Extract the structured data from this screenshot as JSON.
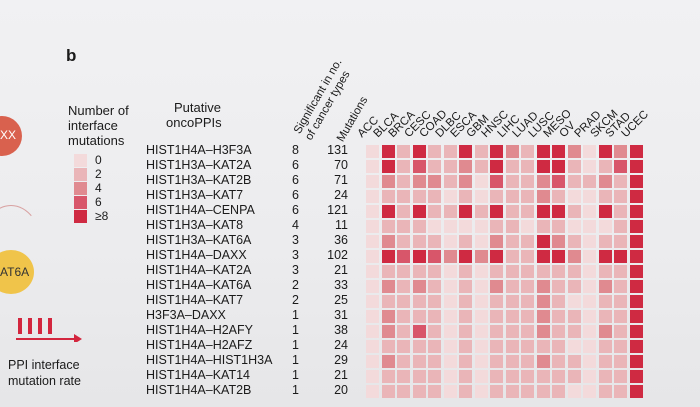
{
  "panel_label": "b",
  "left_fragments": {
    "top_text": "XX",
    "bottom_text": "AT6A"
  },
  "legend": {
    "title_lines": [
      "Number of",
      "interface",
      "mutations"
    ],
    "levels": [
      {
        "label": "0",
        "color": "#f3dadb"
      },
      {
        "label": "2",
        "color": "#eab5b8"
      },
      {
        "label": "4",
        "color": "#e08a90"
      },
      {
        "label": "6",
        "color": "#d8566a"
      },
      {
        "label": "≥8",
        "color": "#cf2a42"
      }
    ]
  },
  "ppi_arrow": {
    "label_lines": [
      "PPI interface",
      "mutation rate"
    ],
    "color": "#d3263e"
  },
  "headers": {
    "putative": [
      "Putative",
      "oncoPPIs"
    ],
    "significant": [
      "Significant in no.",
      "of cancer types"
    ],
    "mutations": "Mutations"
  },
  "cancer_types": [
    "ACC",
    "BLCA",
    "BRCA",
    "CESC",
    "COAD",
    "DLBC",
    "ESCA",
    "GBM",
    "HNSC",
    "LIHC",
    "LUAD",
    "LUSC",
    "MESO",
    "OV",
    "PRAD",
    "SKCM",
    "STAD",
    "UCEC"
  ],
  "rows": [
    {
      "ppi": "HIST1H4A–H3F3A",
      "sig": "8",
      "mut": "131",
      "levels": [
        0,
        4,
        1,
        4,
        1,
        1,
        4,
        1,
        4,
        2,
        1,
        4,
        4,
        2,
        0,
        4,
        2,
        4
      ]
    },
    {
      "ppi": "HIST1H3A–KAT2A",
      "sig": "6",
      "mut": "70",
      "levels": [
        0,
        4,
        1,
        3,
        1,
        1,
        2,
        1,
        4,
        1,
        1,
        4,
        4,
        1,
        0,
        1,
        3,
        4
      ]
    },
    {
      "ppi": "HIST1H3A–KAT2B",
      "sig": "6",
      "mut": "71",
      "levels": [
        0,
        2,
        1,
        2,
        2,
        1,
        2,
        0,
        3,
        1,
        1,
        2,
        3,
        1,
        1,
        2,
        1,
        4
      ]
    },
    {
      "ppi": "HIST1H3A–KAT7",
      "sig": "6",
      "mut": "24",
      "levels": [
        0,
        1,
        1,
        1,
        1,
        0,
        1,
        0,
        1,
        1,
        1,
        2,
        1,
        0,
        0,
        1,
        1,
        4
      ]
    },
    {
      "ppi": "HIST1H4A–CENPA",
      "sig": "6",
      "mut": "121",
      "levels": [
        0,
        4,
        1,
        4,
        1,
        1,
        4,
        1,
        4,
        1,
        1,
        4,
        4,
        1,
        0,
        4,
        1,
        4
      ]
    },
    {
      "ppi": "HIST1H3A–KAT8",
      "sig": "4",
      "mut": "11",
      "levels": [
        0,
        1,
        1,
        1,
        0,
        0,
        0,
        0,
        1,
        1,
        0,
        1,
        1,
        0,
        0,
        0,
        1,
        4
      ]
    },
    {
      "ppi": "HIST1H3A–KAT6A",
      "sig": "3",
      "mut": "36",
      "levels": [
        0,
        2,
        1,
        1,
        1,
        0,
        1,
        0,
        2,
        1,
        1,
        4,
        2,
        1,
        0,
        1,
        1,
        4
      ]
    },
    {
      "ppi": "HIST1H4A–DAXX",
      "sig": "3",
      "mut": "102",
      "levels": [
        0,
        4,
        3,
        4,
        3,
        2,
        4,
        2,
        4,
        1,
        1,
        4,
        4,
        2,
        0,
        4,
        4,
        4
      ]
    },
    {
      "ppi": "HIST1H4A–KAT2A",
      "sig": "3",
      "mut": "21",
      "levels": [
        0,
        1,
        1,
        1,
        1,
        0,
        1,
        0,
        1,
        1,
        1,
        1,
        1,
        1,
        0,
        1,
        1,
        4
      ]
    },
    {
      "ppi": "HIST1H4A–KAT6A",
      "sig": "2",
      "mut": "33",
      "levels": [
        0,
        2,
        1,
        2,
        1,
        0,
        1,
        0,
        2,
        1,
        1,
        2,
        1,
        1,
        0,
        2,
        1,
        4
      ]
    },
    {
      "ppi": "HIST1H4A–KAT7",
      "sig": "2",
      "mut": "25",
      "levels": [
        0,
        1,
        1,
        1,
        1,
        0,
        1,
        0,
        1,
        1,
        1,
        2,
        1,
        0,
        0,
        1,
        1,
        4
      ]
    },
    {
      "ppi": "H3F3A–DAXX",
      "sig": "1",
      "mut": "31",
      "levels": [
        0,
        2,
        1,
        1,
        1,
        0,
        1,
        0,
        1,
        1,
        1,
        2,
        1,
        1,
        0,
        1,
        1,
        4
      ]
    },
    {
      "ppi": "HIST1H4A–H2AFY",
      "sig": "1",
      "mut": "38",
      "levels": [
        0,
        2,
        1,
        3,
        1,
        0,
        1,
        0,
        1,
        1,
        1,
        2,
        1,
        1,
        0,
        2,
        1,
        4
      ]
    },
    {
      "ppi": "HIST1H4A–H2AFZ",
      "sig": "1",
      "mut": "24",
      "levels": [
        0,
        1,
        1,
        1,
        1,
        0,
        1,
        0,
        1,
        1,
        1,
        1,
        1,
        0,
        0,
        1,
        1,
        4
      ]
    },
    {
      "ppi": "HIST1H4A–HIST1H3A",
      "sig": "1",
      "mut": "29",
      "levels": [
        0,
        2,
        1,
        1,
        1,
        0,
        1,
        0,
        1,
        1,
        1,
        2,
        1,
        1,
        0,
        1,
        1,
        4
      ]
    },
    {
      "ppi": "HIST1H4A–KAT14",
      "sig": "1",
      "mut": "21",
      "levels": [
        0,
        1,
        1,
        1,
        1,
        0,
        1,
        0,
        1,
        1,
        1,
        1,
        1,
        1,
        0,
        1,
        1,
        4
      ]
    },
    {
      "ppi": "HIST1H4A–KAT2B",
      "sig": "1",
      "mut": "20",
      "levels": [
        0,
        1,
        1,
        1,
        1,
        0,
        1,
        0,
        1,
        1,
        1,
        1,
        1,
        0,
        0,
        1,
        1,
        4
      ]
    }
  ],
  "chart_data": {
    "type": "heatmap",
    "x": [
      "ACC",
      "BLCA",
      "BRCA",
      "CESC",
      "COAD",
      "DLBC",
      "ESCA",
      "GBM",
      "HNSC",
      "LIHC",
      "LUAD",
      "LUSC",
      "MESO",
      "OV",
      "PRAD",
      "SKCM",
      "STAD",
      "UCEC"
    ],
    "y": [
      "HIST1H4A–H3F3A",
      "HIST1H3A–KAT2A",
      "HIST1H3A–KAT2B",
      "HIST1H3A–KAT7",
      "HIST1H4A–CENPA",
      "HIST1H3A–KAT8",
      "HIST1H3A–KAT6A",
      "HIST1H4A–DAXX",
      "HIST1H4A–KAT2A",
      "HIST1H4A–KAT6A",
      "HIST1H4A–KAT7",
      "H3F3A–DAXX",
      "HIST1H4A–H2AFY",
      "HIST1H4A–H2AFZ",
      "HIST1H4A–HIST1H3A",
      "HIST1H4A–KAT14",
      "HIST1H4A–KAT2B"
    ],
    "significant_in_no_of_cancer_types": [
      8,
      6,
      6,
      6,
      6,
      4,
      3,
      3,
      3,
      2,
      2,
      1,
      1,
      1,
      1,
      1,
      1
    ],
    "mutations": [
      131,
      70,
      71,
      24,
      121,
      11,
      36,
      102,
      21,
      33,
      25,
      31,
      38,
      24,
      29,
      21,
      20
    ],
    "color_scale": [
      "0",
      "2",
      "4",
      "6",
      "≥8"
    ]
  }
}
